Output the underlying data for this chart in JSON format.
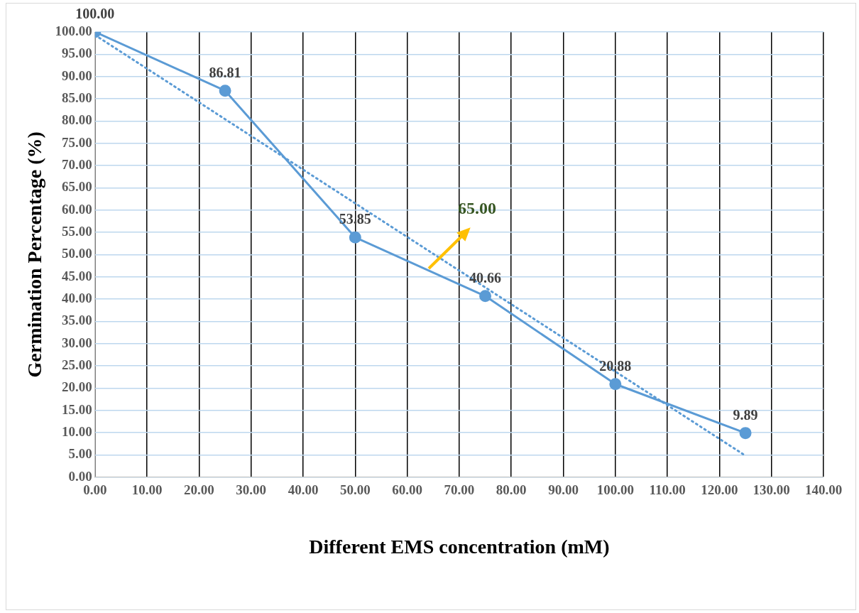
{
  "chart_data": {
    "type": "line",
    "xlabel": "Different EMS concentration (mM)",
    "ylabel": "Germination Percentage (%)",
    "x": [
      0,
      25,
      50,
      75,
      100,
      125
    ],
    "series": [
      {
        "color": "#5b9bd5",
        "values": [
          100.0,
          86.81,
          53.85,
          40.66,
          20.88,
          9.89
        ],
        "value_labels": [
          "100.00",
          "86.81",
          "53.85",
          "40.66",
          "20.88",
          "9.89"
        ],
        "marker": "circle",
        "line_style": "solid"
      },
      {
        "type": "line",
        "color": "#5b9bd5",
        "x": [
          0,
          125
        ],
        "values": [
          99.3,
          4.8
        ],
        "marker": "none",
        "line_style": "dotted"
      }
    ],
    "xlim": [
      0,
      140
    ],
    "xticks": [
      {
        "value": 0,
        "label": "0.00"
      },
      {
        "value": 10,
        "label": "10.00"
      },
      {
        "value": 20,
        "label": "20.00"
      },
      {
        "value": 30,
        "label": "30.00"
      },
      {
        "value": 40,
        "label": "40.00"
      },
      {
        "value": 50,
        "label": "50.00"
      },
      {
        "value": 60,
        "label": "60.00"
      },
      {
        "value": 70,
        "label": "70.00"
      },
      {
        "value": 80,
        "label": "80.00"
      },
      {
        "value": 90,
        "label": "90.00"
      },
      {
        "value": 100,
        "label": "100.00"
      },
      {
        "value": 110,
        "label": "110.00"
      },
      {
        "value": 120,
        "label": "120.00"
      },
      {
        "value": 130,
        "label": "130.00"
      },
      {
        "value": 140,
        "label": "140.00"
      }
    ],
    "ylim": [
      0,
      100
    ],
    "yticks": [
      {
        "value": 0,
        "label": "0.00"
      },
      {
        "value": 5,
        "label": "5.00"
      },
      {
        "value": 10,
        "label": "10.00"
      },
      {
        "value": 15,
        "label": "15.00"
      },
      {
        "value": 20,
        "label": "20.00"
      },
      {
        "value": 25,
        "label": "25.00"
      },
      {
        "value": 30,
        "label": "30.00"
      },
      {
        "value": 35,
        "label": "35.00"
      },
      {
        "value": 40,
        "label": "40.00"
      },
      {
        "value": 45,
        "label": "45.00"
      },
      {
        "value": 50,
        "label": "50.00"
      },
      {
        "value": 55,
        "label": "55.00"
      },
      {
        "value": 60,
        "label": "60.00"
      },
      {
        "value": 65,
        "label": "65.00"
      },
      {
        "value": 70,
        "label": "70.00"
      },
      {
        "value": 75,
        "label": "75.00"
      },
      {
        "value": 80,
        "label": "80.00"
      },
      {
        "value": 85,
        "label": "85.00"
      },
      {
        "value": 90,
        "label": "90.00"
      },
      {
        "value": 95,
        "label": "95.00"
      },
      {
        "value": 100,
        "label": "100.00"
      }
    ],
    "grid": true,
    "legend": false,
    "annotations": [
      {
        "text": "65.00",
        "x": 64,
        "y": 46.5
      }
    ]
  }
}
